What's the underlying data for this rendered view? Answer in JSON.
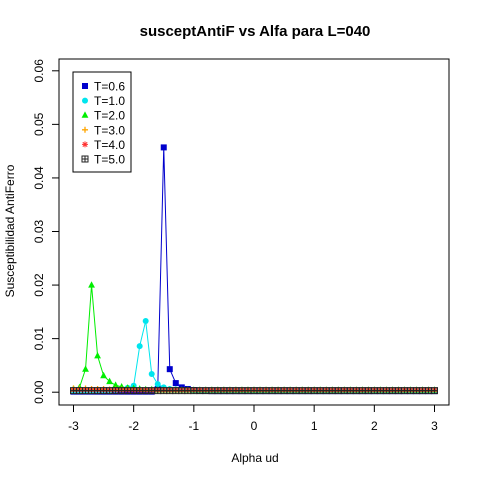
{
  "chart_data": {
    "type": "line",
    "title": "susceptAntiF vs Alfa para L=040",
    "xlabel": "Alpha ud",
    "ylabel": "Susceptibilidad AntiFerro",
    "xlim": [
      -3,
      3
    ],
    "ylim": [
      0,
      0.06
    ],
    "x_ticks": [
      "-3",
      "-2",
      "-1",
      "0",
      "1",
      "2",
      "3"
    ],
    "y_ticks": [
      "0.00",
      "0.01",
      "0.02",
      "0.03",
      "0.04",
      "0.05",
      "0.06"
    ],
    "legend_position": "top-left",
    "series": [
      {
        "name": "T=0.6",
        "color": "#0000cd",
        "marker": "square",
        "x": [
          -3.0,
          -2.9,
          -2.8,
          -2.7,
          -2.6,
          -2.5,
          -2.4,
          -2.3,
          -2.2,
          -2.1,
          -2.0,
          -1.9,
          -1.8,
          -1.7,
          -1.6,
          -1.5,
          -1.4,
          -1.3,
          -1.2,
          -1.1,
          -1.0,
          -0.9,
          -0.8,
          -0.7,
          -0.6,
          -0.5,
          -0.4,
          -0.3,
          -0.2,
          -0.1,
          0.0,
          0.1,
          0.2,
          0.3,
          0.4,
          0.5,
          0.6,
          0.7,
          0.8,
          0.9,
          1.0,
          1.1,
          1.2,
          1.3,
          1.4,
          1.5,
          1.6,
          1.7,
          1.8,
          1.9,
          2.0,
          2.1,
          2.2,
          2.3,
          2.4,
          2.5,
          2.6,
          2.7,
          2.8,
          2.9,
          3.0
        ],
        "y": [
          0.0001,
          0.0001,
          0.0001,
          0.0001,
          0.0001,
          0.0001,
          0.0001,
          0.0001,
          0.0001,
          0.0001,
          0.0001,
          0.0001,
          0.0001,
          0.0001,
          0.0006,
          0.0457,
          0.0043,
          0.0017,
          0.0009,
          0.0006,
          0.0004,
          0.0003,
          0.0003,
          0.0002,
          0.0002,
          0.0002,
          0.0002,
          0.0002,
          0.0002,
          0.0002,
          0.0002,
          0.0002,
          0.0002,
          0.0002,
          0.0002,
          0.0002,
          0.0002,
          0.0002,
          0.0002,
          0.0002,
          0.0002,
          0.0002,
          0.0002,
          0.0002,
          0.0002,
          0.0002,
          0.0002,
          0.0002,
          0.0002,
          0.0002,
          0.0002,
          0.0002,
          0.0002,
          0.0002,
          0.0002,
          0.0002,
          0.0002,
          0.0002,
          0.0002,
          0.0002,
          0.0002
        ]
      },
      {
        "name": "T=1.0",
        "color": "#00e5ee",
        "marker": "circle",
        "x": [
          -3.0,
          -2.9,
          -2.8,
          -2.7,
          -2.6,
          -2.5,
          -2.4,
          -2.3,
          -2.2,
          -2.1,
          -2.0,
          -1.9,
          -1.8,
          -1.7,
          -1.6,
          -1.5,
          -1.4,
          -1.3,
          -1.2,
          -1.1,
          -1.0,
          -0.9,
          -0.8,
          -0.7,
          -0.6,
          -0.5,
          -0.4,
          -0.3,
          -0.2,
          -0.1,
          0.0,
          0.1,
          0.2,
          0.3,
          0.4,
          0.5,
          0.6,
          0.7,
          0.8,
          0.9,
          1.0,
          1.1,
          1.2,
          1.3,
          1.4,
          1.5,
          1.6,
          1.7,
          1.8,
          1.9,
          2.0,
          2.1,
          2.2,
          2.3,
          2.4,
          2.5,
          2.6,
          2.7,
          2.8,
          2.9,
          3.0
        ],
        "y": [
          0.0002,
          0.0002,
          0.0002,
          0.0002,
          0.0003,
          0.0003,
          0.0003,
          0.0004,
          0.0005,
          0.0008,
          0.0012,
          0.0086,
          0.0133,
          0.0034,
          0.0015,
          0.0009,
          0.0006,
          0.0005,
          0.0004,
          0.0004,
          0.0003,
          0.0003,
          0.0003,
          0.0003,
          0.0003,
          0.0003,
          0.0003,
          0.0003,
          0.0003,
          0.0003,
          0.0003,
          0.0003,
          0.0003,
          0.0003,
          0.0003,
          0.0003,
          0.0003,
          0.0003,
          0.0003,
          0.0003,
          0.0003,
          0.0003,
          0.0003,
          0.0003,
          0.0003,
          0.0003,
          0.0003,
          0.0003,
          0.0003,
          0.0003,
          0.0003,
          0.0003,
          0.0003,
          0.0003,
          0.0003,
          0.0003,
          0.0003,
          0.0003,
          0.0003,
          0.0003,
          0.0003
        ]
      },
      {
        "name": "T=2.0",
        "color": "#00ee00",
        "marker": "triangle",
        "x": [
          -3.0,
          -2.9,
          -2.8,
          -2.7,
          -2.6,
          -2.5,
          -2.4,
          -2.3,
          -2.2,
          -2.1,
          -2.0,
          -1.9,
          -1.8,
          -1.7,
          -1.6,
          -1.5,
          -1.4,
          -1.3,
          -1.2,
          -1.1,
          -1.0,
          -0.9,
          -0.8,
          -0.7,
          -0.6,
          -0.5,
          -0.4,
          -0.3,
          -0.2,
          -0.1,
          0.0,
          0.1,
          0.2,
          0.3,
          0.4,
          0.5,
          0.6,
          0.7,
          0.8,
          0.9,
          1.0,
          1.1,
          1.2,
          1.3,
          1.4,
          1.5,
          1.6,
          1.7,
          1.8,
          1.9,
          2.0,
          2.1,
          2.2,
          2.3,
          2.4,
          2.5,
          2.6,
          2.7,
          2.8,
          2.9,
          3.0
        ],
        "y": [
          0.0006,
          0.0009,
          0.0043,
          0.02,
          0.0068,
          0.0031,
          0.002,
          0.0013,
          0.001,
          0.0008,
          0.0007,
          0.0006,
          0.0005,
          0.0005,
          0.0004,
          0.0004,
          0.0004,
          0.0004,
          0.0004,
          0.0004,
          0.0004,
          0.0004,
          0.0004,
          0.0004,
          0.0004,
          0.0004,
          0.0004,
          0.0004,
          0.0004,
          0.0004,
          0.0004,
          0.0004,
          0.0004,
          0.0004,
          0.0004,
          0.0004,
          0.0004,
          0.0004,
          0.0004,
          0.0004,
          0.0004,
          0.0004,
          0.0004,
          0.0004,
          0.0004,
          0.0004,
          0.0004,
          0.0004,
          0.0004,
          0.0004,
          0.0004,
          0.0004,
          0.0004,
          0.0004,
          0.0004,
          0.0004,
          0.0004,
          0.0004,
          0.0004,
          0.0004,
          0.0004
        ]
      },
      {
        "name": "T=3.0",
        "color": "#ffa500",
        "marker": "plus",
        "x": [
          -3.0,
          -2.9,
          -2.8,
          -2.7,
          -2.6,
          -2.5,
          -2.4,
          -2.3,
          -2.2,
          -2.1,
          -2.0,
          -1.9,
          -1.8,
          -1.7,
          -1.6,
          -1.5,
          -1.4,
          -1.3,
          -1.2,
          -1.1,
          -1.0,
          -0.9,
          -0.8,
          -0.7,
          -0.6,
          -0.5,
          -0.4,
          -0.3,
          -0.2,
          -0.1,
          0.0,
          0.1,
          0.2,
          0.3,
          0.4,
          0.5,
          0.6,
          0.7,
          0.8,
          0.9,
          1.0,
          1.1,
          1.2,
          1.3,
          1.4,
          1.5,
          1.6,
          1.7,
          1.8,
          1.9,
          2.0,
          2.1,
          2.2,
          2.3,
          2.4,
          2.5,
          2.6,
          2.7,
          2.8,
          2.9,
          3.0
        ],
        "y": [
          0.0007,
          0.0007,
          0.0007,
          0.0006,
          0.0006,
          0.0006,
          0.0005,
          0.0005,
          0.0005,
          0.0005,
          0.0004,
          0.0004,
          0.0004,
          0.0004,
          0.0004,
          0.0004,
          0.0004,
          0.0004,
          0.0004,
          0.0004,
          0.0004,
          0.0004,
          0.0004,
          0.0004,
          0.0004,
          0.0004,
          0.0004,
          0.0004,
          0.0004,
          0.0004,
          0.0004,
          0.0004,
          0.0004,
          0.0004,
          0.0004,
          0.0004,
          0.0004,
          0.0004,
          0.0004,
          0.0004,
          0.0004,
          0.0004,
          0.0004,
          0.0004,
          0.0004,
          0.0004,
          0.0004,
          0.0004,
          0.0004,
          0.0004,
          0.0004,
          0.0004,
          0.0004,
          0.0004,
          0.0004,
          0.0004,
          0.0004,
          0.0004,
          0.0004,
          0.0004,
          0.0004
        ]
      },
      {
        "name": "T=4.0",
        "color": "#ff3030",
        "marker": "asterisk",
        "x": [
          -3.0,
          -2.9,
          -2.8,
          -2.7,
          -2.6,
          -2.5,
          -2.4,
          -2.3,
          -2.2,
          -2.1,
          -2.0,
          -1.9,
          -1.8,
          -1.7,
          -1.6,
          -1.5,
          -1.4,
          -1.3,
          -1.2,
          -1.1,
          -1.0,
          -0.9,
          -0.8,
          -0.7,
          -0.6,
          -0.5,
          -0.4,
          -0.3,
          -0.2,
          -0.1,
          0.0,
          0.1,
          0.2,
          0.3,
          0.4,
          0.5,
          0.6,
          0.7,
          0.8,
          0.9,
          1.0,
          1.1,
          1.2,
          1.3,
          1.4,
          1.5,
          1.6,
          1.7,
          1.8,
          1.9,
          2.0,
          2.1,
          2.2,
          2.3,
          2.4,
          2.5,
          2.6,
          2.7,
          2.8,
          2.9,
          3.0
        ],
        "y": [
          0.0004,
          0.0004,
          0.0004,
          0.0004,
          0.0004,
          0.0004,
          0.0004,
          0.0004,
          0.0004,
          0.0004,
          0.0004,
          0.0004,
          0.0004,
          0.0004,
          0.0004,
          0.0004,
          0.0004,
          0.0004,
          0.0004,
          0.0004,
          0.0004,
          0.0004,
          0.0004,
          0.0004,
          0.0004,
          0.0004,
          0.0004,
          0.0004,
          0.0004,
          0.0004,
          0.0004,
          0.0004,
          0.0004,
          0.0004,
          0.0004,
          0.0004,
          0.0004,
          0.0004,
          0.0004,
          0.0004,
          0.0004,
          0.0004,
          0.0004,
          0.0004,
          0.0004,
          0.0004,
          0.0004,
          0.0004,
          0.0004,
          0.0004,
          0.0004,
          0.0004,
          0.0004,
          0.0004,
          0.0004,
          0.0004,
          0.0004,
          0.0004,
          0.0004,
          0.0004,
          0.0004
        ]
      },
      {
        "name": "T=5.0",
        "color": "#222222",
        "marker": "boxplus",
        "x": [
          -3.0,
          -2.9,
          -2.8,
          -2.7,
          -2.6,
          -2.5,
          -2.4,
          -2.3,
          -2.2,
          -2.1,
          -2.0,
          -1.9,
          -1.8,
          -1.7,
          -1.6,
          -1.5,
          -1.4,
          -1.3,
          -1.2,
          -1.1,
          -1.0,
          -0.9,
          -0.8,
          -0.7,
          -0.6,
          -0.5,
          -0.4,
          -0.3,
          -0.2,
          -0.1,
          0.0,
          0.1,
          0.2,
          0.3,
          0.4,
          0.5,
          0.6,
          0.7,
          0.8,
          0.9,
          1.0,
          1.1,
          1.2,
          1.3,
          1.4,
          1.5,
          1.6,
          1.7,
          1.8,
          1.9,
          2.0,
          2.1,
          2.2,
          2.3,
          2.4,
          2.5,
          2.6,
          2.7,
          2.8,
          2.9,
          3.0
        ],
        "y": [
          0.0003,
          0.0003,
          0.0003,
          0.0003,
          0.0003,
          0.0003,
          0.0003,
          0.0003,
          0.0003,
          0.0003,
          0.0003,
          0.0003,
          0.0003,
          0.0003,
          0.0003,
          0.0003,
          0.0003,
          0.0003,
          0.0003,
          0.0003,
          0.0003,
          0.0003,
          0.0003,
          0.0003,
          0.0003,
          0.0003,
          0.0003,
          0.0003,
          0.0003,
          0.0003,
          0.0003,
          0.0003,
          0.0003,
          0.0003,
          0.0003,
          0.0003,
          0.0003,
          0.0003,
          0.0003,
          0.0003,
          0.0003,
          0.0003,
          0.0003,
          0.0003,
          0.0003,
          0.0003,
          0.0003,
          0.0003,
          0.0003,
          0.0003,
          0.0003,
          0.0003,
          0.0003,
          0.0003,
          0.0003,
          0.0003,
          0.0003,
          0.0003,
          0.0003,
          0.0003,
          0.0003
        ]
      }
    ]
  }
}
